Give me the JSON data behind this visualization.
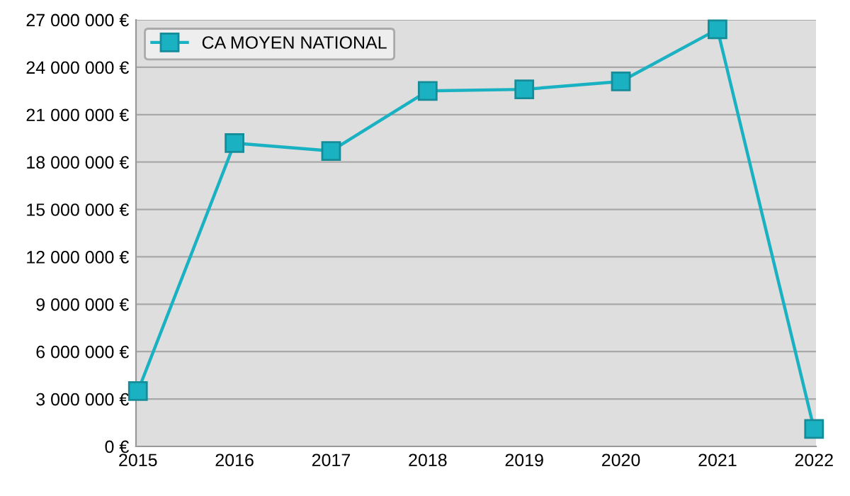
{
  "chart_data": {
    "type": "line",
    "categories": [
      "2015",
      "2016",
      "2017",
      "2018",
      "2019",
      "2020",
      "2021",
      "2022"
    ],
    "series": [
      {
        "name": "CA MOYEN NATIONAL",
        "color": "#1ab2c2",
        "values": [
          3500000,
          19200000,
          18700000,
          22500000,
          22600000,
          23100000,
          26400000,
          1100000
        ]
      }
    ],
    "ylim": [
      0,
      27000000
    ],
    "yticks": [
      {
        "value": 0,
        "label": "0 €"
      },
      {
        "value": 3000000,
        "label": "3 000 000 €"
      },
      {
        "value": 6000000,
        "label": "6 000 000 €"
      },
      {
        "value": 9000000,
        "label": "9 000 000 €"
      },
      {
        "value": 12000000,
        "label": "12 000 000 €"
      },
      {
        "value": 15000000,
        "label": "15 000 000 €"
      },
      {
        "value": 18000000,
        "label": "18 000 000 €"
      },
      {
        "value": 21000000,
        "label": "21 000 000 €"
      },
      {
        "value": 24000000,
        "label": "24 000 000 €"
      },
      {
        "value": 27000000,
        "label": "27 000 000 €"
      }
    ],
    "grid": "y",
    "legend": "top left",
    "marker": "square",
    "line_style": "solid"
  }
}
